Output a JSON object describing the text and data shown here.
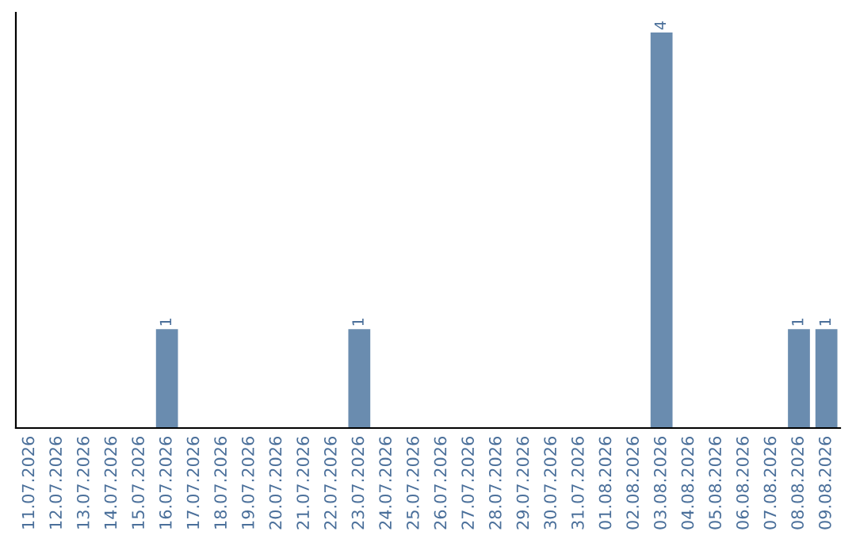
{
  "chart_data": {
    "type": "bar",
    "categories": [
      "11.07.2026",
      "12.07.2026",
      "13.07.2026",
      "14.07.2026",
      "15.07.2026",
      "16.07.2026",
      "17.07.2026",
      "18.07.2026",
      "19.07.2026",
      "20.07.2026",
      "21.07.2026",
      "22.07.2026",
      "23.07.2026",
      "24.07.2026",
      "25.07.2026",
      "26.07.2026",
      "27.07.2026",
      "28.07.2026",
      "29.07.2026",
      "30.07.2026",
      "31.07.2026",
      "01.08.2026",
      "02.08.2026",
      "03.08.2026",
      "04.08.2026",
      "05.08.2026",
      "06.08.2026",
      "07.08.2026",
      "08.08.2026",
      "09.08.2026"
    ],
    "values": [
      0,
      0,
      0,
      0,
      0,
      1,
      0,
      0,
      0,
      0,
      0,
      0,
      1,
      0,
      0,
      0,
      0,
      0,
      0,
      0,
      0,
      0,
      0,
      4,
      0,
      0,
      0,
      0,
      1,
      1
    ],
    "value_labels": [
      null,
      null,
      null,
      null,
      null,
      "1",
      null,
      null,
      null,
      null,
      null,
      null,
      "1",
      null,
      null,
      null,
      null,
      null,
      null,
      null,
      null,
      null,
      null,
      "4",
      null,
      null,
      null,
      null,
      "1",
      "1"
    ],
    "color": "#6a8caf",
    "ylim": [
      0,
      4.2
    ],
    "tick_labels": "x",
    "grid": false,
    "legend": false
  }
}
